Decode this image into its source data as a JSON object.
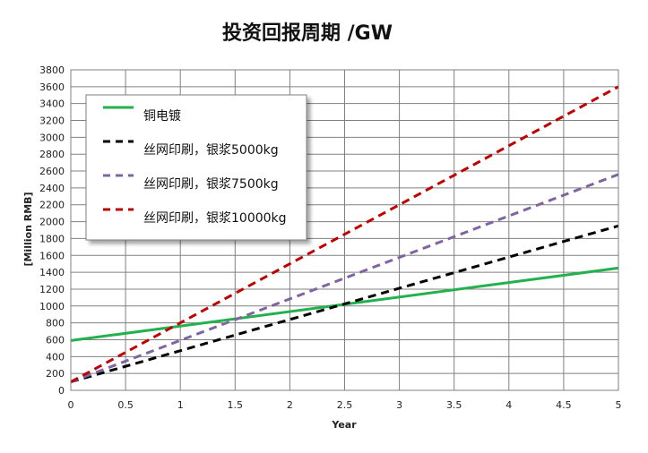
{
  "chart_data": {
    "type": "line",
    "title": "投资回报周期 /GW",
    "xlabel": "Year",
    "ylabel": "[Million RMB]",
    "xlim": [
      0,
      5
    ],
    "ylim": [
      0,
      3800
    ],
    "xticks": [
      0,
      0.5,
      1,
      1.5,
      2,
      2.5,
      3,
      3.5,
      4,
      4.5,
      5
    ],
    "xtick_labels": [
      "0",
      "0.5",
      "1",
      "1.5",
      "2",
      "2.5",
      "3",
      "3.5",
      "4",
      "4.5",
      "5"
    ],
    "yticks": [
      0,
      200,
      400,
      600,
      800,
      1000,
      1200,
      1400,
      1600,
      1800,
      2000,
      2200,
      2400,
      2600,
      2800,
      3000,
      3200,
      3400,
      3600,
      3800
    ],
    "ytick_labels": [
      "0",
      "200",
      "400",
      "600",
      "800",
      "1000",
      "1200",
      "1400",
      "1600",
      "1800",
      "2000",
      "2200",
      "2400",
      "2600",
      "2800",
      "3000",
      "3200",
      "3400",
      "3600",
      "3800"
    ],
    "grid": true,
    "legend_position": "top-left",
    "series": [
      {
        "name": "铜电镀",
        "x": [
          0,
          5
        ],
        "y": [
          590,
          1450
        ],
        "color": "#22b14c",
        "dash": "solid"
      },
      {
        "name": "丝网印刷，银浆5000kg",
        "x": [
          0,
          5
        ],
        "y": [
          100,
          1950
        ],
        "color": "#000000",
        "dash": "dashed"
      },
      {
        "name": "丝网印刷，银浆7500kg",
        "x": [
          0,
          5
        ],
        "y": [
          100,
          2560
        ],
        "color": "#8064a2",
        "dash": "dashed"
      },
      {
        "name": "丝网印刷，银浆10000kg",
        "x": [
          0,
          5
        ],
        "y": [
          100,
          3600
        ],
        "color": "#c00000",
        "dash": "dashed"
      }
    ]
  }
}
